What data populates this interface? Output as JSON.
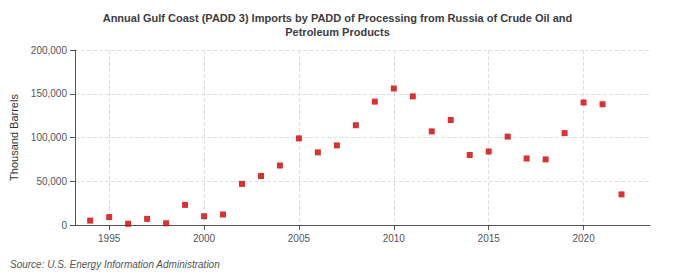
{
  "chart_data": {
    "type": "scatter",
    "title": "Annual Gulf Coast (PADD 3) Imports by PADD of Processing from Russia of Crude Oil and\nPetroleum Products",
    "ylabel": "Thousand Barrels",
    "annotations": [
      "Source: U.S. Energy Information Administration"
    ],
    "x": [
      1994,
      1995,
      1996,
      1997,
      1998,
      1999,
      2000,
      2001,
      2002,
      2003,
      2004,
      2005,
      2006,
      2007,
      2008,
      2009,
      2010,
      2011,
      2012,
      2013,
      2014,
      2015,
      2016,
      2017,
      2018,
      2019,
      2020,
      2021,
      2022
    ],
    "values": [
      5000,
      9000,
      1500,
      7000,
      2000,
      23000,
      10000,
      12000,
      47000,
      56000,
      68000,
      99000,
      83000,
      91000,
      114000,
      141000,
      156000,
      147000,
      107000,
      120000,
      80000,
      84000,
      101000,
      76000,
      75000,
      105000,
      140000,
      138000,
      35000
    ],
    "color": "#cc0000",
    "marker": "square",
    "xlim": [
      1993.2,
      2023.5
    ],
    "xticks": [
      1995,
      2000,
      2005,
      2010,
      2015,
      2020
    ],
    "ylim": [
      0,
      200000
    ],
    "yticks": [
      0,
      {
        "value": 50000,
        "label": "50,000"
      },
      {
        "value": 100000,
        "label": "100,000"
      },
      {
        "value": 150000,
        "label": "150,000"
      },
      {
        "value": 200000,
        "label": "200,000"
      }
    ],
    "grid": true
  }
}
